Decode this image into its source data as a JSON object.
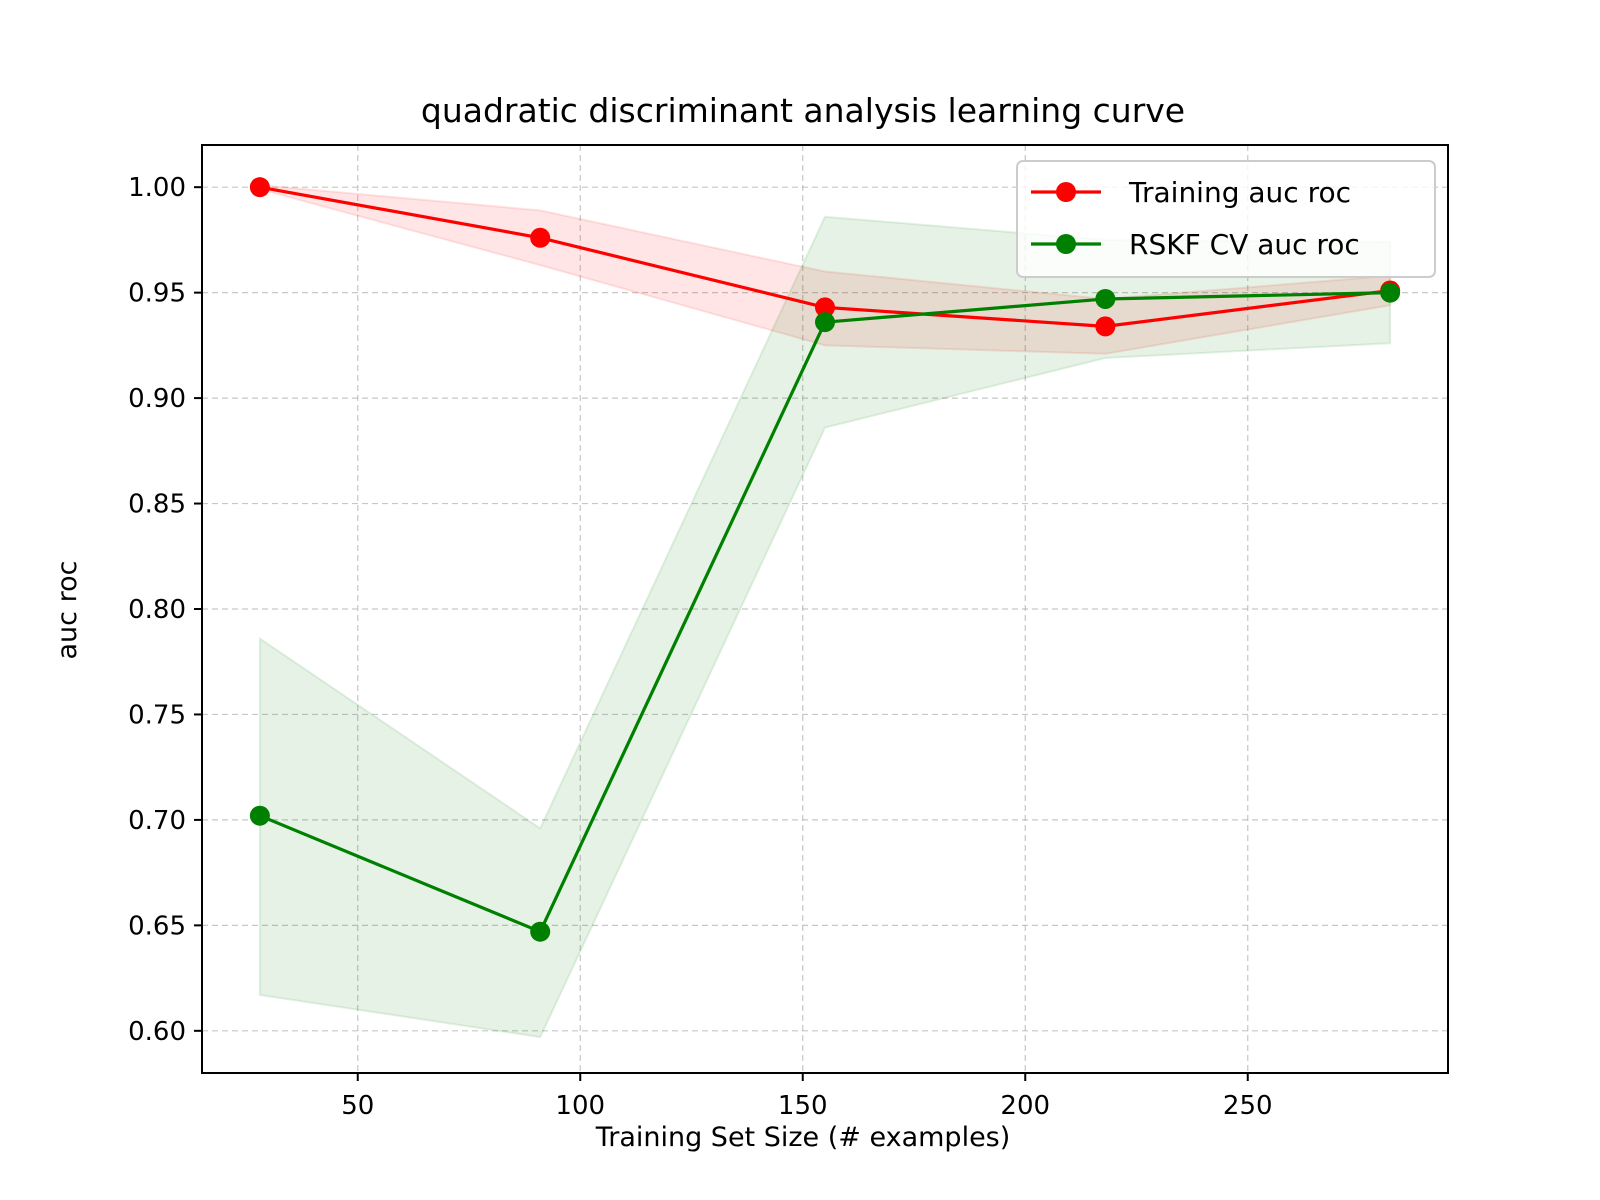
{
  "chart_data": {
    "type": "line",
    "title": "quadratic discriminant analysis learning curve",
    "xlabel": "Training Set Size (# examples)",
    "ylabel": "auc roc",
    "xlim": [
      15,
      295
    ],
    "ylim": [
      0.58,
      1.02
    ],
    "xticks": [
      50,
      100,
      150,
      200,
      250
    ],
    "xtick_labels": [
      "50",
      "100",
      "150",
      "200",
      "250"
    ],
    "yticks": [
      0.6,
      0.65,
      0.7,
      0.75,
      0.8,
      0.85,
      0.9,
      0.95,
      1.0
    ],
    "ytick_labels": [
      "0.60",
      "0.65",
      "0.70",
      "0.75",
      "0.80",
      "0.85",
      "0.90",
      "0.95",
      "1.00"
    ],
    "grid": true,
    "legend_position": "top-right",
    "x": [
      28,
      91,
      155,
      218,
      282
    ],
    "series": [
      {
        "name": "Training auc roc",
        "color": "#ff0000",
        "band_color": "#ff0000",
        "values": [
          1.0,
          0.976,
          0.943,
          0.934,
          0.951
        ],
        "band_lower": [
          0.999,
          0.963,
          0.925,
          0.921,
          0.944
        ],
        "band_upper": [
          1.001,
          0.989,
          0.96,
          0.947,
          0.958
        ]
      },
      {
        "name": "RSKF CV auc roc",
        "color": "#008000",
        "band_color": "#008000",
        "values": [
          0.702,
          0.647,
          0.936,
          0.947,
          0.95
        ],
        "band_lower": [
          0.617,
          0.597,
          0.886,
          0.919,
          0.926
        ],
        "band_upper": [
          0.786,
          0.696,
          0.986,
          0.975,
          0.974
        ]
      }
    ]
  }
}
